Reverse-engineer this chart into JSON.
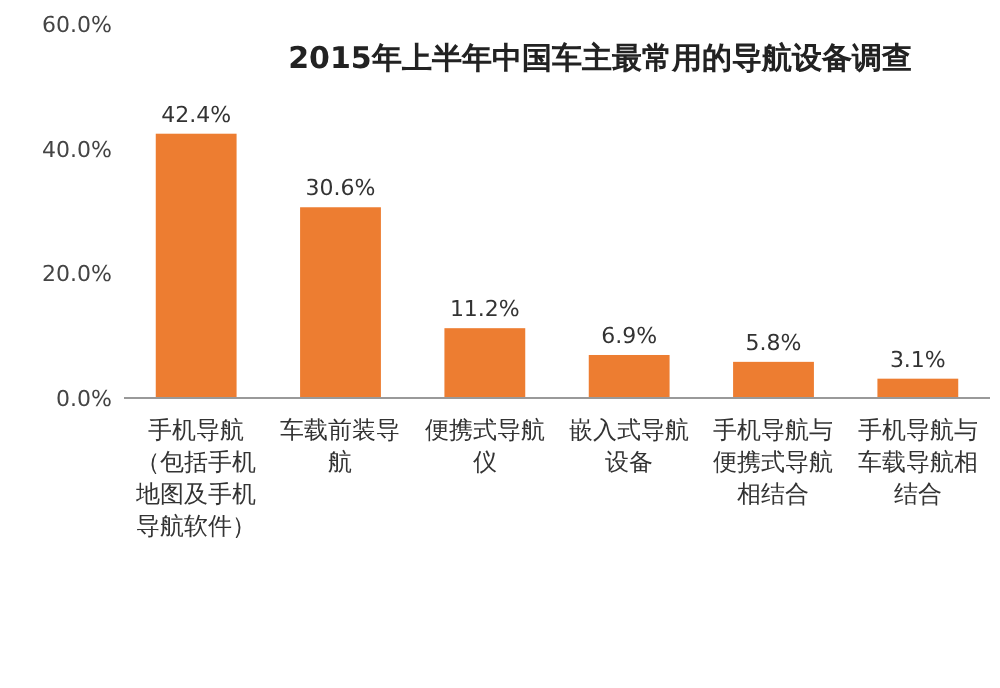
{
  "chart_data": {
    "type": "bar",
    "title": "2015年上半年中国车主最常用的导航设备调查",
    "categories": [
      "手机导航（包括手机地图及手机导航软件）",
      "车载前装导航",
      "便携式导航仪",
      "嵌入式导航设备",
      "手机导航与便携式导航相结合",
      "手机导航与车载导航相结合"
    ],
    "values": [
      42.4,
      30.6,
      11.2,
      6.9,
      5.8,
      3.1
    ],
    "value_labels": [
      "42.4%",
      "30.6%",
      "11.2%",
      "6.9%",
      "5.8%",
      "3.1%"
    ],
    "color": "#ed7d31",
    "ylim": [
      0,
      60
    ],
    "yticks": [
      {
        "value": 0,
        "label": "0.0%"
      },
      {
        "value": 20,
        "label": "20.0%"
      },
      {
        "value": 40,
        "label": "40.0%"
      },
      {
        "value": 60,
        "label": "60.0%"
      }
    ]
  }
}
